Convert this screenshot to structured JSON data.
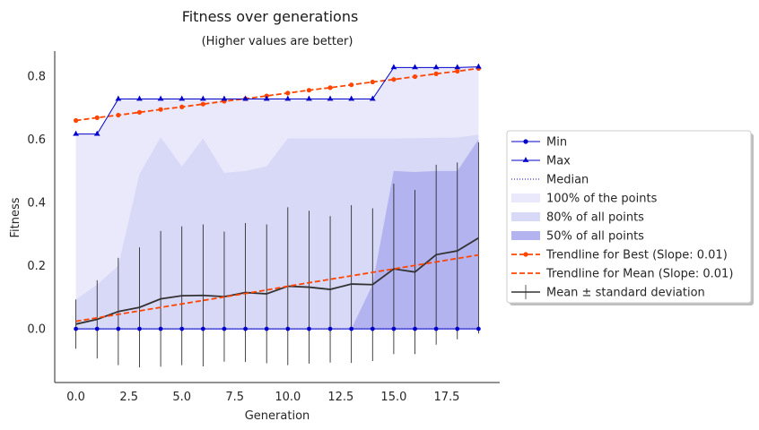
{
  "chart_data": {
    "type": "line",
    "title": "Fitness over generations",
    "subtitle": "(Higher values are better)",
    "xlabel": "Generation",
    "ylabel": "Fitness",
    "xlim": [
      -1,
      20
    ],
    "ylim": [
      -0.17,
      0.88
    ],
    "x_ticks": [
      0,
      2.5,
      5,
      7.5,
      10,
      12.5,
      15,
      17.5
    ],
    "x_tick_labels": [
      "0.0",
      "2.5",
      "5.0",
      "7.5",
      "10.0",
      "12.5",
      "15.0",
      "17.5"
    ],
    "y_ticks": [
      0,
      0.2,
      0.4,
      0.6,
      0.8
    ],
    "y_tick_labels": [
      "0.0",
      "0.2",
      "0.4",
      "0.6",
      "0.8"
    ],
    "grid": false,
    "legend_position": "right, outside plot",
    "x": [
      0,
      1,
      2,
      3,
      4,
      5,
      6,
      7,
      8,
      9,
      10,
      11,
      12,
      13,
      14,
      15,
      16,
      17,
      18,
      19
    ],
    "series": [
      {
        "name": "Min",
        "color": "#0000cc",
        "marker": "circle",
        "values": [
          0,
          0,
          0,
          0,
          0,
          0,
          0,
          0,
          0,
          0,
          0,
          0,
          0,
          0,
          0,
          0,
          0,
          0,
          0,
          0
        ]
      },
      {
        "name": "Max",
        "color": "#0000cc",
        "marker": "star",
        "values": [
          0.617,
          0.617,
          0.728,
          0.728,
          0.728,
          0.728,
          0.728,
          0.728,
          0.728,
          0.728,
          0.728,
          0.728,
          0.728,
          0.728,
          0.728,
          0.828,
          0.828,
          0.828,
          0.828,
          0.83
        ]
      },
      {
        "name": "Median",
        "color": "#0000cc",
        "style": "dotted",
        "values": [
          0,
          0,
          0,
          0,
          0,
          0,
          0,
          0,
          0,
          0,
          0,
          0,
          0,
          0,
          0,
          0,
          0,
          0,
          0,
          0
        ]
      },
      {
        "name": "100% of the points",
        "type": "band",
        "color": "#e9e9fb",
        "lower": [
          0,
          0,
          0,
          0,
          0,
          0,
          0,
          0,
          0,
          0,
          0,
          0,
          0,
          0,
          0,
          0,
          0,
          0,
          0,
          0
        ],
        "upper": [
          0.617,
          0.617,
          0.728,
          0.728,
          0.728,
          0.728,
          0.728,
          0.728,
          0.728,
          0.728,
          0.728,
          0.728,
          0.728,
          0.728,
          0.728,
          0.828,
          0.828,
          0.828,
          0.828,
          0.83
        ]
      },
      {
        "name": "80% of all points",
        "type": "band",
        "color": "#d8d8f7",
        "lower": [
          0,
          0,
          0,
          0,
          0,
          0,
          0,
          0,
          0,
          0,
          0,
          0,
          0,
          0,
          0,
          0,
          0,
          0,
          0,
          0
        ],
        "upper": [
          0.093,
          0.14,
          0.2,
          0.49,
          0.607,
          0.514,
          0.603,
          0.494,
          0.5,
          0.515,
          0.603,
          0.603,
          0.603,
          0.603,
          0.603,
          0.603,
          0.604,
          0.605,
          0.606,
          0.615
        ]
      },
      {
        "name": "50% of all points",
        "type": "band",
        "color": "#b3b3f0",
        "lower": [
          0,
          0,
          0,
          0,
          0,
          0,
          0,
          0,
          0,
          0,
          0,
          0,
          0,
          0,
          0,
          0,
          0,
          0,
          0,
          0
        ],
        "upper": [
          0,
          0,
          0,
          0,
          0,
          0,
          0,
          0,
          0,
          0,
          0,
          0,
          0,
          0,
          0.14,
          0.5,
          0.497,
          0.5,
          0.5,
          0.6
        ]
      },
      {
        "name": "Trendline for Best (Slope: 0.01)",
        "color": "#ff4500",
        "style": "dashed",
        "marker": "circle",
        "values": [
          0.66,
          0.669,
          0.677,
          0.686,
          0.695,
          0.703,
          0.712,
          0.721,
          0.729,
          0.738,
          0.747,
          0.756,
          0.764,
          0.773,
          0.782,
          0.79,
          0.799,
          0.808,
          0.816,
          0.825
        ]
      },
      {
        "name": "Trendline for Mean (Slope: 0.01)",
        "color": "#ff4500",
        "style": "dashed",
        "values": [
          0.024,
          0.035,
          0.046,
          0.057,
          0.068,
          0.079,
          0.09,
          0.101,
          0.112,
          0.123,
          0.135,
          0.146,
          0.157,
          0.168,
          0.179,
          0.19,
          0.201,
          0.212,
          0.223,
          0.234
        ]
      },
      {
        "name": "Mean ± standard deviation",
        "color": "#333333",
        "type": "errorbar",
        "values": [
          0.015,
          0.03,
          0.055,
          0.068,
          0.095,
          0.105,
          0.106,
          0.102,
          0.115,
          0.111,
          0.135,
          0.132,
          0.125,
          0.142,
          0.14,
          0.19,
          0.18,
          0.235,
          0.247,
          0.288
        ],
        "error": [
          0.078,
          0.124,
          0.17,
          0.19,
          0.215,
          0.22,
          0.225,
          0.206,
          0.22,
          0.22,
          0.25,
          0.242,
          0.232,
          0.25,
          0.242,
          0.27,
          0.26,
          0.285,
          0.28,
          0.303
        ]
      }
    ]
  }
}
